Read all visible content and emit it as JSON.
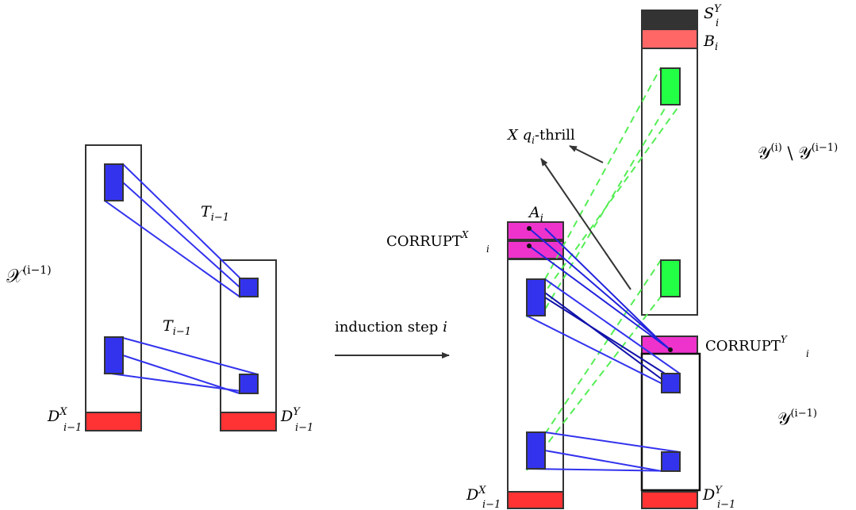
{
  "colors": {
    "blue": "#3333ee",
    "blue_line": "#2222dd",
    "red": "#ff3333",
    "magenta": "#ee33cc",
    "green": "#22ff44",
    "green_dash": "#55ee55",
    "dark": "#333333",
    "salmon": "#ff6666",
    "outline": "#333333"
  },
  "left": {
    "x_set": {
      "base": "𝒳",
      "sup": "(i−1)"
    },
    "t_top": {
      "base": "T",
      "sub": "i−1"
    },
    "t_bottom": {
      "base": "T",
      "sub": "i−1"
    },
    "dx": {
      "base": "D",
      "sup": "X",
      "sub": "i−1"
    },
    "dy": {
      "base": "D",
      "sup": "Y",
      "sub": "i−1"
    }
  },
  "arrow": {
    "text": "induction step ",
    "var": "i"
  },
  "right": {
    "a": {
      "base": "A",
      "sub": "i"
    },
    "corrupt_x": {
      "base": "CORRUPT",
      "sup": "X",
      "sub": "i"
    },
    "corrupt_y": {
      "base": "CORRUPT",
      "sup": "Y",
      "sub": "i"
    },
    "thrill": {
      "x": "X",
      "q": "q",
      "qsub": "i",
      "rest": "-thrill"
    },
    "s": {
      "base": "S",
      "sup": "Y",
      "sub": "i"
    },
    "b": {
      "base": "B",
      "sub": "i"
    },
    "y_diff": {
      "a": "𝒴",
      "asup": "(i)",
      "mid": " \\ ",
      "b": "𝒴",
      "bsup": "(i−1)"
    },
    "y_prev": {
      "base": "𝒴",
      "sup": "(i−1)"
    },
    "dx": {
      "base": "D",
      "sup": "X",
      "sub": "i−1"
    },
    "dy": {
      "base": "D",
      "sup": "Y",
      "sub": "i−1"
    }
  }
}
